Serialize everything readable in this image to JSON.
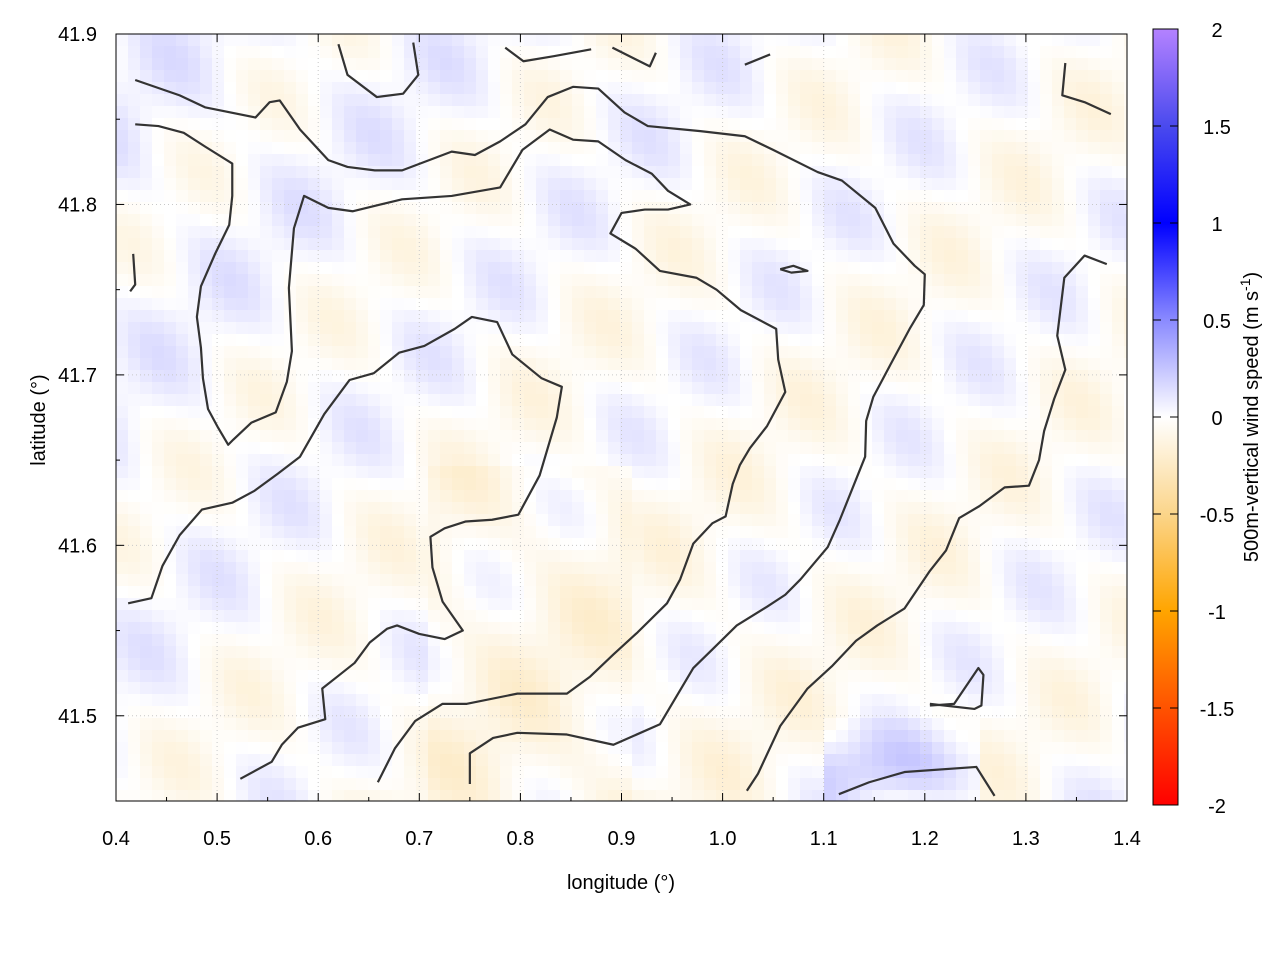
{
  "chart_data": {
    "type": "heatmap",
    "xlabel": "longitude (°)",
    "ylabel": "latitude (°)",
    "colorbar_label": "500m-vertical wind speed (m s",
    "colorbar_label_sup": "-1",
    "colorbar_label_end": ")",
    "xlim": [
      0.4,
      1.4
    ],
    "ylim": [
      41.45,
      41.9
    ],
    "xticks": [
      "0.4",
      "0.5",
      "0.6",
      "0.7",
      "0.8",
      "0.9",
      "1.0",
      "1.1",
      "1.2",
      "1.3",
      "1.4"
    ],
    "yticks": [
      "41.5",
      "41.6",
      "41.7",
      "41.8",
      "41.9"
    ],
    "clim": [
      -2,
      2
    ],
    "cticks": [
      "-2",
      "-1.5",
      "-1",
      "-0.5",
      "0",
      "0.5",
      "1",
      "1.5",
      "2"
    ],
    "grid": true,
    "colormap": [
      {
        "v": -2,
        "c": "#ff0000"
      },
      {
        "v": -1,
        "c": "#ffa500"
      },
      {
        "v": -0.5,
        "c": "#fbd58a"
      },
      {
        "v": 0,
        "c": "#ffffff"
      },
      {
        "v": 0.5,
        "c": "#8a8aff"
      },
      {
        "v": 1,
        "c": "#0000ff"
      },
      {
        "v": 1.5,
        "c": "#4a4aee"
      },
      {
        "v": 2,
        "c": "#b482ff"
      }
    ],
    "contour_color": "#333333",
    "contours": [
      [
        [
          0.419,
          41.873
        ],
        [
          0.463,
          41.864
        ],
        [
          0.488,
          41.857
        ],
        [
          0.538,
          41.851
        ],
        [
          0.552,
          41.86
        ],
        [
          0.562,
          41.861
        ],
        [
          0.582,
          41.844
        ],
        [
          0.61,
          41.826
        ],
        [
          0.629,
          41.822
        ],
        [
          0.656,
          41.82
        ],
        [
          0.683,
          41.82
        ],
        [
          0.732,
          41.831
        ],
        [
          0.755,
          41.829
        ],
        [
          0.78,
          41.837
        ],
        [
          0.805,
          41.847
        ],
        [
          0.827,
          41.863
        ],
        [
          0.852,
          41.869
        ],
        [
          0.877,
          41.868
        ],
        [
          0.903,
          41.854
        ],
        [
          0.926,
          41.846
        ],
        [
          0.978,
          41.843
        ],
        [
          1.022,
          41.84
        ],
        [
          1.05,
          41.832
        ],
        [
          1.094,
          41.819
        ],
        [
          1.118,
          41.814
        ],
        [
          1.151,
          41.798
        ],
        [
          1.169,
          41.777
        ],
        [
          1.19,
          41.764
        ],
        [
          1.2,
          41.759
        ],
        [
          1.199,
          41.741
        ],
        [
          1.185,
          41.727
        ],
        [
          1.166,
          41.706
        ],
        [
          1.149,
          41.687
        ],
        [
          1.142,
          41.673
        ],
        [
          1.141,
          41.652
        ],
        [
          1.116,
          41.615
        ],
        [
          1.104,
          41.599
        ],
        [
          1.077,
          41.58
        ],
        [
          1.062,
          41.571
        ],
        [
          1.044,
          41.564
        ],
        [
          1.014,
          41.553
        ],
        [
          0.99,
          41.539
        ],
        [
          0.971,
          41.528
        ],
        [
          0.938,
          41.495
        ],
        [
          0.892,
          41.483
        ],
        [
          0.846,
          41.489
        ],
        [
          0.797,
          41.49
        ],
        [
          0.773,
          41.487
        ],
        [
          0.75,
          41.478
        ],
        [
          0.75,
          41.46
        ]
      ],
      [
        [
          0.419,
          41.847
        ],
        [
          0.442,
          41.846
        ],
        [
          0.467,
          41.842
        ],
        [
          0.488,
          41.834
        ],
        [
          0.515,
          41.824
        ],
        [
          0.515,
          41.805
        ],
        [
          0.512,
          41.788
        ],
        [
          0.498,
          41.771
        ],
        [
          0.484,
          41.752
        ],
        [
          0.48,
          41.734
        ],
        [
          0.484,
          41.716
        ],
        [
          0.486,
          41.698
        ],
        [
          0.491,
          41.68
        ],
        [
          0.501,
          41.669
        ],
        [
          0.511,
          41.659
        ],
        [
          0.516,
          41.662
        ],
        [
          0.534,
          41.672
        ],
        [
          0.558,
          41.678
        ],
        [
          0.569,
          41.696
        ],
        [
          0.574,
          41.714
        ],
        [
          0.571,
          41.751
        ],
        [
          0.576,
          41.786
        ],
        [
          0.586,
          41.805
        ],
        [
          0.61,
          41.798
        ],
        [
          0.634,
          41.796
        ],
        [
          0.683,
          41.803
        ],
        [
          0.732,
          41.805
        ],
        [
          0.78,
          41.81
        ],
        [
          0.802,
          41.832
        ],
        [
          0.829,
          41.844
        ],
        [
          0.852,
          41.838
        ],
        [
          0.877,
          41.837
        ],
        [
          0.904,
          41.826
        ],
        [
          0.93,
          41.818
        ],
        [
          0.946,
          41.808
        ],
        [
          0.968,
          41.8
        ],
        [
          0.946,
          41.797
        ],
        [
          0.923,
          41.797
        ],
        [
          0.9,
          41.795
        ],
        [
          0.889,
          41.783
        ],
        [
          0.914,
          41.774
        ],
        [
          0.938,
          41.761
        ],
        [
          0.974,
          41.757
        ],
        [
          0.994,
          41.75
        ],
        [
          1.018,
          41.738
        ],
        [
          1.053,
          41.727
        ],
        [
          1.055,
          41.709
        ],
        [
          1.062,
          41.69
        ],
        [
          1.044,
          41.67
        ],
        [
          1.027,
          41.657
        ],
        [
          1.017,
          41.647
        ],
        [
          1.01,
          41.636
        ],
        [
          1.003,
          41.617
        ],
        [
          0.99,
          41.613
        ],
        [
          0.971,
          41.601
        ],
        [
          0.958,
          41.58
        ],
        [
          0.945,
          41.566
        ],
        [
          0.916,
          41.549
        ],
        [
          0.892,
          41.536
        ],
        [
          0.869,
          41.523
        ],
        [
          0.846,
          41.513
        ],
        [
          0.797,
          41.513
        ],
        [
          0.747,
          41.507
        ],
        [
          0.723,
          41.507
        ],
        [
          0.696,
          41.497
        ],
        [
          0.676,
          41.481
        ],
        [
          0.659,
          41.461
        ]
      ],
      [
        [
          0.412,
          41.566
        ],
        [
          0.435,
          41.569
        ],
        [
          0.446,
          41.588
        ],
        [
          0.463,
          41.606
        ],
        [
          0.485,
          41.621
        ],
        [
          0.515,
          41.625
        ],
        [
          0.537,
          41.632
        ],
        [
          0.56,
          41.642
        ],
        [
          0.582,
          41.652
        ],
        [
          0.606,
          41.677
        ],
        [
          0.631,
          41.697
        ],
        [
          0.655,
          41.701
        ],
        [
          0.68,
          41.713
        ],
        [
          0.705,
          41.717
        ],
        [
          0.735,
          41.727
        ],
        [
          0.752,
          41.734
        ],
        [
          0.777,
          41.731
        ],
        [
          0.792,
          41.712
        ],
        [
          0.821,
          41.698
        ],
        [
          0.841,
          41.693
        ],
        [
          0.836,
          41.675
        ],
        [
          0.819,
          41.641
        ],
        [
          0.798,
          41.618
        ],
        [
          0.772,
          41.615
        ],
        [
          0.746,
          41.614
        ],
        [
          0.725,
          41.61
        ],
        [
          0.711,
          41.605
        ],
        [
          0.713,
          41.587
        ],
        [
          0.723,
          41.567
        ],
        [
          0.743,
          41.55
        ],
        [
          0.725,
          41.545
        ],
        [
          0.7,
          41.548
        ],
        [
          0.678,
          41.553
        ],
        [
          0.668,
          41.551
        ],
        [
          0.651,
          41.543
        ],
        [
          0.636,
          41.531
        ],
        [
          0.619,
          41.523
        ],
        [
          0.604,
          41.516
        ],
        [
          0.607,
          41.498
        ],
        [
          0.58,
          41.493
        ],
        [
          0.564,
          41.483
        ],
        [
          0.554,
          41.473
        ],
        [
          0.523,
          41.463
        ]
      ],
      [
        [
          1.38,
          41.765
        ],
        [
          1.358,
          41.77
        ],
        [
          1.338,
          41.757
        ],
        [
          1.331,
          41.723
        ],
        [
          1.339,
          41.703
        ],
        [
          1.328,
          41.686
        ],
        [
          1.318,
          41.667
        ],
        [
          1.313,
          41.65
        ],
        [
          1.303,
          41.635
        ],
        [
          1.279,
          41.634
        ],
        [
          1.254,
          41.623
        ],
        [
          1.234,
          41.616
        ],
        [
          1.221,
          41.597
        ],
        [
          1.205,
          41.585
        ],
        [
          1.18,
          41.563
        ],
        [
          1.153,
          41.553
        ],
        [
          1.132,
          41.544
        ],
        [
          1.108,
          41.529
        ],
        [
          1.084,
          41.516
        ],
        [
          1.057,
          41.494
        ],
        [
          1.035,
          41.466
        ],
        [
          1.024,
          41.456
        ]
      ],
      [
        [
          0.62,
          41.894
        ],
        [
          0.629,
          41.876
        ],
        [
          0.658,
          41.863
        ],
        [
          0.684,
          41.865
        ],
        [
          0.699,
          41.876
        ],
        [
          0.694,
          41.895
        ]
      ],
      [
        [
          0.785,
          41.892
        ],
        [
          0.803,
          41.884
        ],
        [
          0.833,
          41.887
        ],
        [
          0.87,
          41.891
        ]
      ],
      [
        [
          0.891,
          41.892
        ],
        [
          0.928,
          41.881
        ],
        [
          0.934,
          41.889
        ]
      ],
      [
        [
          1.022,
          41.882
        ],
        [
          1.047,
          41.888
        ]
      ],
      [
        [
          1.339,
          41.883
        ],
        [
          1.336,
          41.864
        ],
        [
          1.358,
          41.86
        ],
        [
          1.384,
          41.853
        ]
      ],
      [
        [
          0.417,
          41.771
        ],
        [
          0.419,
          41.753
        ],
        [
          0.414,
          41.749
        ]
      ],
      [
        [
          1.057,
          41.762
        ],
        [
          1.07,
          41.764
        ],
        [
          1.084,
          41.761
        ],
        [
          1.068,
          41.76
        ],
        [
          1.057,
          41.762
        ]
      ],
      [
        [
          1.205,
          41.507
        ],
        [
          1.249,
          41.504
        ],
        [
          1.256,
          41.506
        ],
        [
          1.258,
          41.524
        ],
        [
          1.253,
          41.528
        ],
        [
          1.229,
          41.507
        ],
        [
          1.205,
          41.506
        ]
      ],
      [
        [
          1.115,
          41.454
        ],
        [
          1.145,
          41.461
        ],
        [
          1.18,
          41.467
        ],
        [
          1.251,
          41.47
        ],
        [
          1.269,
          41.453
        ]
      ]
    ]
  }
}
